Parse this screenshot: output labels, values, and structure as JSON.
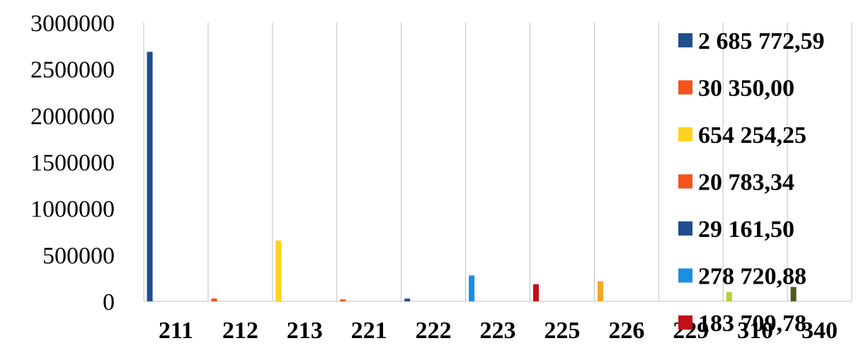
{
  "chart_data": {
    "type": "bar",
    "title": "",
    "xlabel": "",
    "ylabel": "",
    "ylim": [
      0,
      3000000
    ],
    "yticks": [
      "0",
      "500000",
      "1000000",
      "1500000",
      "2000000",
      "2500000",
      "3000000"
    ],
    "grid": "vertical",
    "legend_position": "right",
    "categories": [
      "211",
      "212",
      "213",
      "221",
      "222",
      "223",
      "225",
      "226",
      "229",
      "310",
      "340"
    ],
    "series": [
      {
        "name": "2 685 772,59",
        "color": "#1f4e8c",
        "values": [
          2685772.59,
          null,
          null,
          null,
          null,
          null,
          null,
          null,
          null,
          null,
          null
        ]
      },
      {
        "name": "30 350,00",
        "color": "#f2541b",
        "values": [
          null,
          30350.0,
          null,
          null,
          null,
          null,
          null,
          null,
          null,
          null,
          null
        ]
      },
      {
        "name": "654 254,25",
        "color": "#ffd21f",
        "values": [
          null,
          null,
          654254.25,
          null,
          null,
          null,
          null,
          null,
          null,
          null,
          null
        ]
      },
      {
        "name": "20 783,34",
        "color": "#f2541b",
        "values": [
          null,
          null,
          null,
          20783.34,
          null,
          null,
          null,
          null,
          null,
          null,
          null
        ]
      },
      {
        "name": "29 161,50",
        "color": "#1f4e8c",
        "values": [
          null,
          null,
          null,
          null,
          29161.5,
          null,
          null,
          null,
          null,
          null,
          null
        ]
      },
      {
        "name": "278 720,88",
        "color": "#1a8fe0",
        "values": [
          null,
          null,
          null,
          null,
          null,
          278720.88,
          null,
          null,
          null,
          null,
          null
        ]
      },
      {
        "name": "183 709,78",
        "color": "#c0101a",
        "values": [
          null,
          null,
          null,
          null,
          null,
          null,
          183709.78,
          null,
          null,
          null,
          null
        ]
      },
      {
        "name": "",
        "color": "#f5a623",
        "values": [
          null,
          null,
          null,
          null,
          null,
          null,
          null,
          215000,
          null,
          null,
          null
        ]
      },
      {
        "name": "",
        "color": "#b5d334",
        "values": [
          null,
          null,
          null,
          null,
          null,
          null,
          null,
          null,
          null,
          100000,
          null
        ]
      },
      {
        "name": "",
        "color": "#4a5a1a",
        "values": [
          null,
          null,
          null,
          null,
          null,
          null,
          null,
          null,
          null,
          null,
          155000
        ]
      }
    ]
  }
}
